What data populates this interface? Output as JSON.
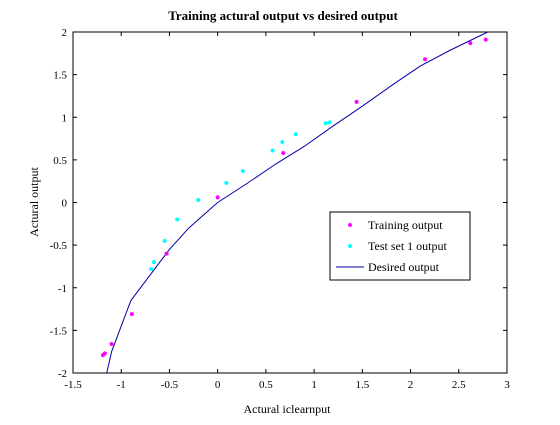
{
  "chart_data": {
    "type": "scatter",
    "title": "Training actural output vs desired output",
    "xlabel": "Actural iclearnput",
    "ylabel": "Actural output",
    "xlim": [
      -1.5,
      3
    ],
    "ylim": [
      -2,
      2
    ],
    "xticks": [
      -1.5,
      -1,
      -0.5,
      0,
      0.5,
      1,
      1.5,
      2,
      2.5,
      3
    ],
    "xtick_labels": [
      "-1.5",
      "-1",
      "-0.5",
      "0",
      "0.5",
      "1",
      "1.5",
      "2",
      "2.5",
      "3"
    ],
    "yticks": [
      -2,
      -1.5,
      -1,
      -0.5,
      0,
      0.5,
      1,
      1.5,
      2
    ],
    "ytick_labels": [
      "-2",
      "-1.5",
      "-1",
      "-0.5",
      "0",
      "0.5",
      "1",
      "1.5",
      "2"
    ],
    "grid": false,
    "legend_position": "center-right",
    "series": [
      {
        "name": "Training output",
        "kind": "markers",
        "marker": "dot",
        "color": "#ff00ff",
        "points": [
          [
            -1.19,
            -1.79
          ],
          [
            -1.17,
            -1.77
          ],
          [
            -1.1,
            -1.66
          ],
          [
            -0.89,
            -1.31
          ],
          [
            -0.53,
            -0.6
          ],
          [
            0.0,
            0.06
          ],
          [
            0.68,
            0.58
          ],
          [
            1.44,
            1.18
          ],
          [
            2.15,
            1.68
          ],
          [
            2.62,
            1.87
          ],
          [
            2.78,
            1.91
          ]
        ]
      },
      {
        "name": "Test set 1 output",
        "kind": "markers",
        "marker": "dot",
        "color": "#00ffff",
        "points": [
          [
            -0.69,
            -0.78
          ],
          [
            -0.66,
            -0.7
          ],
          [
            -0.55,
            -0.45
          ],
          [
            -0.42,
            -0.2
          ],
          [
            -0.2,
            0.03
          ],
          [
            0.09,
            0.23
          ],
          [
            0.26,
            0.37
          ],
          [
            0.57,
            0.61
          ],
          [
            0.67,
            0.71
          ],
          [
            0.81,
            0.8
          ],
          [
            1.12,
            0.93
          ],
          [
            1.16,
            0.94
          ]
        ]
      },
      {
        "name": "Desired output",
        "kind": "line",
        "color": "#0000aa",
        "points": [
          [
            -1.15,
            -2.0
          ],
          [
            -1.1,
            -1.75
          ],
          [
            -1.0,
            -1.45
          ],
          [
            -0.9,
            -1.15
          ],
          [
            -0.7,
            -0.85
          ],
          [
            -0.5,
            -0.55
          ],
          [
            -0.3,
            -0.3
          ],
          [
            -0.15,
            -0.15
          ],
          [
            0.0,
            0.0
          ],
          [
            0.3,
            0.22
          ],
          [
            0.6,
            0.45
          ],
          [
            0.9,
            0.66
          ],
          [
            1.2,
            0.9
          ],
          [
            1.5,
            1.13
          ],
          [
            1.8,
            1.37
          ],
          [
            2.1,
            1.6
          ],
          [
            2.4,
            1.78
          ],
          [
            2.6,
            1.89
          ],
          [
            2.8,
            2.0
          ]
        ]
      }
    ]
  }
}
